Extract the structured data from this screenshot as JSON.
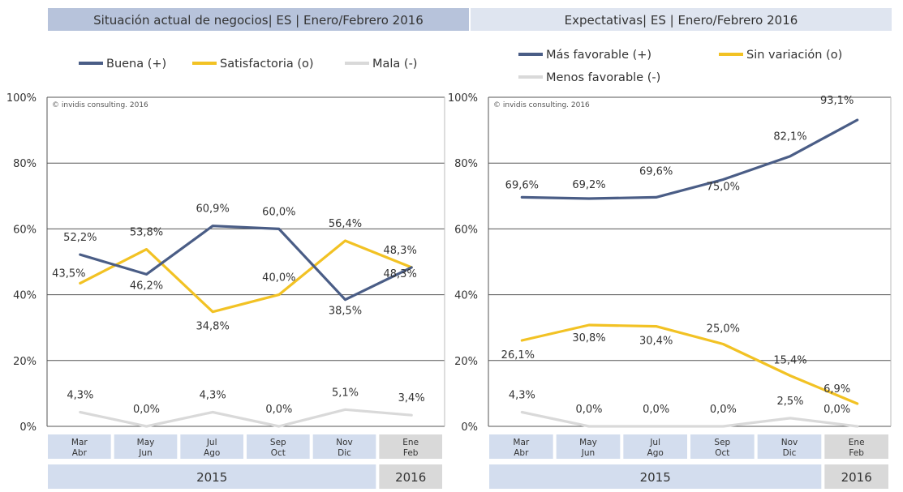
{
  "chart_data": [
    {
      "type": "line",
      "title": "Situación actual de negocios| ES | Enero/Febrero 2016",
      "copyright": "© invidis consulting. 2016",
      "categories": [
        "Mar\nAbr",
        "May\nJun",
        "Jul\nAgo",
        "Sep\nOct",
        "Nov\nDic",
        "Ene\nFeb"
      ],
      "years": [
        {
          "label": "2015",
          "from": 0,
          "to": 4
        },
        {
          "label": "2016",
          "from": 5,
          "to": 5
        }
      ],
      "ylim": [
        0,
        100
      ],
      "yticks": [
        0,
        20,
        40,
        60,
        80,
        100
      ],
      "ytick_labels": [
        "0%",
        "20%",
        "40%",
        "60%",
        "80%",
        "100%"
      ],
      "grid": true,
      "legend": "top",
      "series": [
        {
          "name": "Buena (+)",
          "color": "#4a5d86",
          "values": [
            52.2,
            46.2,
            60.9,
            60.0,
            38.5,
            48.3
          ],
          "labels": [
            "52,2%",
            "46,2%",
            "60,9%",
            "60,0%",
            "38,5%",
            "48,3%"
          ]
        },
        {
          "name": "Satisfactoria (o)",
          "color": "#f2c224",
          "values": [
            43.5,
            53.8,
            34.8,
            40.0,
            56.4,
            48.3
          ],
          "labels": [
            "43,5%",
            "53,8%",
            "34,8%",
            "40,0%",
            "56,4%",
            "48,3%"
          ]
        },
        {
          "name": "Mala (-)",
          "color": "#d9d9d9",
          "values": [
            4.3,
            0.0,
            4.3,
            0.0,
            5.1,
            3.4
          ],
          "labels": [
            "4,3%",
            "0,0%",
            "4,3%",
            "0,0%",
            "5,1%",
            "3,4%"
          ]
        }
      ]
    },
    {
      "type": "line",
      "title": "Expectativas| ES | Enero/Febrero 2016",
      "copyright": "© invidis consulting. 2016",
      "categories": [
        "Mar\nAbr",
        "May\nJun",
        "Jul\nAgo",
        "Sep\nOct",
        "Nov\nDic",
        "Ene\nFeb"
      ],
      "years": [
        {
          "label": "2015",
          "from": 0,
          "to": 4
        },
        {
          "label": "2016",
          "from": 5,
          "to": 5
        }
      ],
      "ylim": [
        0,
        100
      ],
      "yticks": [
        0,
        20,
        40,
        60,
        80,
        100
      ],
      "ytick_labels": [
        "0%",
        "20%",
        "40%",
        "60%",
        "80%",
        "100%"
      ],
      "grid": true,
      "legend": "top",
      "series": [
        {
          "name": "Más favorable (+)",
          "color": "#4a5d86",
          "values": [
            69.6,
            69.2,
            69.6,
            75.0,
            82.1,
            93.1
          ],
          "labels": [
            "69,6%",
            "69,2%",
            "69,6%",
            "75,0%",
            "82,1%",
            "93,1%"
          ]
        },
        {
          "name": "Sin variación (o)",
          "color": "#f2c224",
          "values": [
            26.1,
            30.8,
            30.4,
            25.0,
            15.4,
            6.9
          ],
          "labels": [
            "26,1%",
            "30,8%",
            "30,4%",
            "25,0%",
            "15,4%",
            "6,9%"
          ]
        },
        {
          "name": "Menos favorable (-)",
          "color": "#d9d9d9",
          "values": [
            4.3,
            0.0,
            0.0,
            0.0,
            2.5,
            0.0
          ],
          "labels": [
            "4,3%",
            "0,0%",
            "0,0%",
            "0,0%",
            "2,5%",
            "0,0%"
          ]
        }
      ]
    }
  ],
  "colors": {
    "title_bar_left": "#b7c3db",
    "title_bar_right": "#dfe5f0",
    "category_box": "#d3ddee",
    "category_box_last": "#d9d9d9",
    "year_box": "#d3ddee",
    "year_box_last": "#d9d9d9",
    "text": "#333333",
    "gridline": "#555555"
  }
}
